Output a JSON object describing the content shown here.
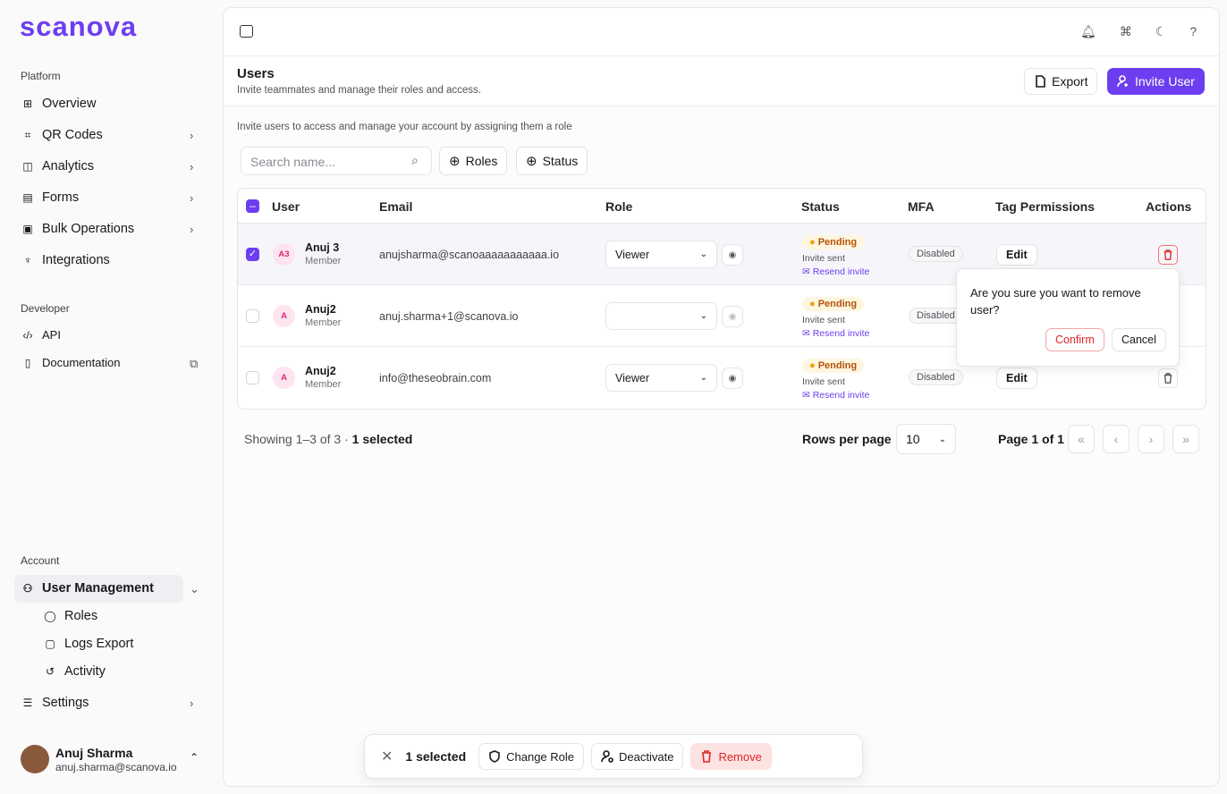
{
  "brand": "scanova",
  "sidebar": {
    "groups": [
      {
        "title": "Platform",
        "items": [
          "Overview",
          "QR Codes",
          "Analytics",
          "Forms",
          "Bulk Operations",
          "Integrations"
        ]
      },
      {
        "title": "Developer",
        "items": [
          "API",
          "Documentation"
        ]
      },
      {
        "title": "Account",
        "items": [
          "User Management",
          "Roles",
          "Logs Export",
          "Activity",
          "Settings"
        ]
      }
    ],
    "user": {
      "name": "Anuj Sharma",
      "email": "anuj.sharma@scanova.io"
    }
  },
  "header": {
    "title": "Users",
    "subtitle": "Invite teammates and manage their roles and access.",
    "export": "Export",
    "invite": "Invite User"
  },
  "intro": "Invite users to access and manage your account by assigning them a role",
  "search_placeholder": "Search name...",
  "filters": [
    "Roles",
    "Status"
  ],
  "table": {
    "columns": [
      "User",
      "Email",
      "Role",
      "Status",
      "MFA",
      "Tag Permissions",
      "Actions"
    ],
    "rows": [
      {
        "initials": "A3",
        "name": "Anuj 3",
        "subtitle": "Member",
        "email": "anujsharma@scanoaaaaaaaaaaa.io",
        "role": "Viewer",
        "status": "Pending",
        "status_note": "Invite sent",
        "resend": "Resend invite",
        "mfa": "Disabled",
        "tag": "Edit"
      },
      {
        "initials": "A",
        "name": "Anuj2",
        "subtitle": "Member",
        "email": "anuj.sharma+1@scanova.io",
        "role": null,
        "status": "Pending",
        "status_note": "Invite sent",
        "resend": "Resend invite",
        "mfa": "Disabled",
        "tag": null
      },
      {
        "initials": "A",
        "name": "Anuj2",
        "subtitle": "Member",
        "email": "info@theseobrain.com",
        "role": "Viewer",
        "status": "Pending",
        "status_note": "Invite sent",
        "resend": "Resend invite",
        "mfa": "Disabled",
        "tag": "Edit"
      }
    ]
  },
  "footer": {
    "showing": "Showing 1–3 of 3 ·",
    "selected": "1 selected",
    "rows_per_page": "Rows per page",
    "page_size": 10,
    "page": "Page 1 of 1"
  },
  "popover": {
    "message": "Are you sure you want to remove user?",
    "confirm": "Confirm",
    "cancel": "Cancel"
  },
  "bulk_bar": {
    "selected": "1 selected",
    "actions": [
      "Change Role",
      "Deactivate",
      "Remove"
    ]
  }
}
